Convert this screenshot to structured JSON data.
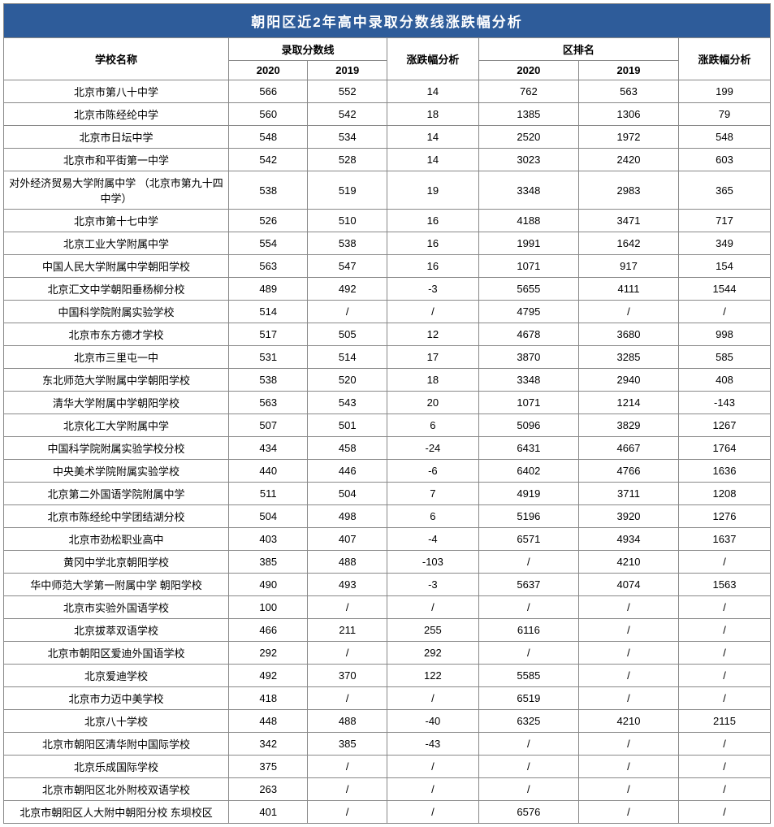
{
  "title": "朝阳区近2年高中录取分数线涨跌幅分析",
  "headers": {
    "school": "学校名称",
    "scoreGroup": "录取分数线",
    "year2020": "2020",
    "year2019": "2019",
    "diff": "涨跌幅分析",
    "rankGroup": "区排名"
  },
  "rows": [
    {
      "school": "北京市第八十中学",
      "s2020": "566",
      "s2019": "552",
      "sd": "14",
      "r2020": "762",
      "r2019": "563",
      "rd": "199"
    },
    {
      "school": "北京市陈经纶中学",
      "s2020": "560",
      "s2019": "542",
      "sd": "18",
      "r2020": "1385",
      "r2019": "1306",
      "rd": "79"
    },
    {
      "school": "北京市日坛中学",
      "s2020": "548",
      "s2019": "534",
      "sd": "14",
      "r2020": "2520",
      "r2019": "1972",
      "rd": "548"
    },
    {
      "school": "北京市和平街第一中学",
      "s2020": "542",
      "s2019": "528",
      "sd": "14",
      "r2020": "3023",
      "r2019": "2420",
      "rd": "603"
    },
    {
      "school": "对外经济贸易大学附属中学 （北京市第九十四中学）",
      "s2020": "538",
      "s2019": "519",
      "sd": "19",
      "r2020": "3348",
      "r2019": "2983",
      "rd": "365"
    },
    {
      "school": "北京市第十七中学",
      "s2020": "526",
      "s2019": "510",
      "sd": "16",
      "r2020": "4188",
      "r2019": "3471",
      "rd": "717"
    },
    {
      "school": "北京工业大学附属中学",
      "s2020": "554",
      "s2019": "538",
      "sd": "16",
      "r2020": "1991",
      "r2019": "1642",
      "rd": "349"
    },
    {
      "school": "中国人民大学附属中学朝阳学校",
      "s2020": "563",
      "s2019": "547",
      "sd": "16",
      "r2020": "1071",
      "r2019": "917",
      "rd": "154"
    },
    {
      "school": "北京汇文中学朝阳垂杨柳分校",
      "s2020": "489",
      "s2019": "492",
      "sd": "-3",
      "r2020": "5655",
      "r2019": "4111",
      "rd": "1544"
    },
    {
      "school": "中国科学院附属实验学校",
      "s2020": "514",
      "s2019": "/",
      "sd": "/",
      "r2020": "4795",
      "r2019": "/",
      "rd": "/"
    },
    {
      "school": "北京市东方德才学校",
      "s2020": "517",
      "s2019": "505",
      "sd": "12",
      "r2020": "4678",
      "r2019": "3680",
      "rd": "998"
    },
    {
      "school": "北京市三里屯一中",
      "s2020": "531",
      "s2019": "514",
      "sd": "17",
      "r2020": "3870",
      "r2019": "3285",
      "rd": "585"
    },
    {
      "school": "东北师范大学附属中学朝阳学校",
      "s2020": "538",
      "s2019": "520",
      "sd": "18",
      "r2020": "3348",
      "r2019": "2940",
      "rd": "408"
    },
    {
      "school": "清华大学附属中学朝阳学校",
      "s2020": "563",
      "s2019": "543",
      "sd": "20",
      "r2020": "1071",
      "r2019": "1214",
      "rd": "-143"
    },
    {
      "school": "北京化工大学附属中学",
      "s2020": "507",
      "s2019": "501",
      "sd": "6",
      "r2020": "5096",
      "r2019": "3829",
      "rd": "1267"
    },
    {
      "school": "中国科学院附属实验学校分校",
      "s2020": "434",
      "s2019": "458",
      "sd": "-24",
      "r2020": "6431",
      "r2019": "4667",
      "rd": "1764"
    },
    {
      "school": "中央美术学院附属实验学校",
      "s2020": "440",
      "s2019": "446",
      "sd": "-6",
      "r2020": "6402",
      "r2019": "4766",
      "rd": "1636"
    },
    {
      "school": "北京第二外国语学院附属中学",
      "s2020": "511",
      "s2019": "504",
      "sd": "7",
      "r2020": "4919",
      "r2019": "3711",
      "rd": "1208"
    },
    {
      "school": "北京市陈经纶中学团结湖分校",
      "s2020": "504",
      "s2019": "498",
      "sd": "6",
      "r2020": "5196",
      "r2019": "3920",
      "rd": "1276"
    },
    {
      "school": "北京市劲松职业高中",
      "s2020": "403",
      "s2019": "407",
      "sd": "-4",
      "r2020": "6571",
      "r2019": "4934",
      "rd": "1637"
    },
    {
      "school": "黄冈中学北京朝阳学校",
      "s2020": "385",
      "s2019": "488",
      "sd": "-103",
      "r2020": "/",
      "r2019": "4210",
      "rd": "/"
    },
    {
      "school": "华中师范大学第一附属中学 朝阳学校",
      "s2020": "490",
      "s2019": "493",
      "sd": "-3",
      "r2020": "5637",
      "r2019": "4074",
      "rd": "1563"
    },
    {
      "school": "北京市实验外国语学校",
      "s2020": "100",
      "s2019": "/",
      "sd": "/",
      "r2020": "/",
      "r2019": "/",
      "rd": "/"
    },
    {
      "school": "北京拔萃双语学校",
      "s2020": "466",
      "s2019": "211",
      "sd": "255",
      "r2020": "6116",
      "r2019": "/",
      "rd": "/"
    },
    {
      "school": "北京市朝阳区爱迪外国语学校",
      "s2020": "292",
      "s2019": "/",
      "sd": "292",
      "r2020": "/",
      "r2019": "/",
      "rd": "/"
    },
    {
      "school": "北京爱迪学校",
      "s2020": "492",
      "s2019": "370",
      "sd": "122",
      "r2020": "5585",
      "r2019": "/",
      "rd": "/"
    },
    {
      "school": "北京市力迈中美学校",
      "s2020": "418",
      "s2019": "/",
      "sd": "/",
      "r2020": "6519",
      "r2019": "/",
      "rd": "/"
    },
    {
      "school": "北京八十学校",
      "s2020": "448",
      "s2019": "488",
      "sd": "-40",
      "r2020": "6325",
      "r2019": "4210",
      "rd": "2115"
    },
    {
      "school": "北京市朝阳区清华附中国际学校",
      "s2020": "342",
      "s2019": "385",
      "sd": "-43",
      "r2020": "/",
      "r2019": "/",
      "rd": "/"
    },
    {
      "school": "北京乐成国际学校",
      "s2020": "375",
      "s2019": "/",
      "sd": "/",
      "r2020": "/",
      "r2019": "/",
      "rd": "/"
    },
    {
      "school": "北京市朝阳区北外附校双语学校",
      "s2020": "263",
      "s2019": "/",
      "sd": "/",
      "r2020": "/",
      "r2019": "/",
      "rd": "/"
    },
    {
      "school": "北京市朝阳区人大附中朝阳分校 东坝校区",
      "s2020": "401",
      "s2019": "/",
      "sd": "/",
      "r2020": "6576",
      "r2019": "/",
      "rd": "/"
    }
  ]
}
